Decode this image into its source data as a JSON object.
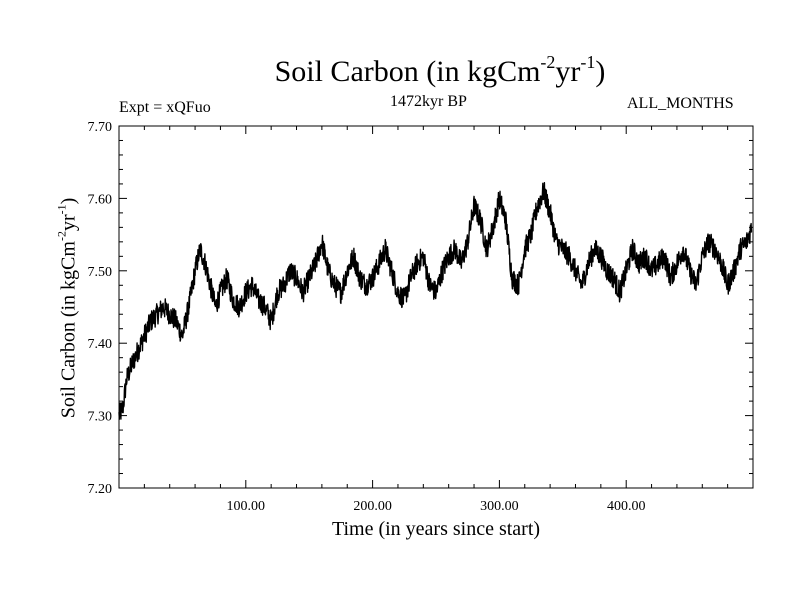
{
  "chart_data": {
    "type": "line",
    "title": "Soil Carbon (in kgCm",
    "title_sup1": "-2",
    "title_mid": "yr",
    "title_sup2": "-1",
    "title_end": ")",
    "subtitle_left": "Expt = xQFuo",
    "subtitle_center": "1472kyr BP",
    "subtitle_right": "ALL_MONTHS",
    "xlabel": "Time (in years since start)",
    "ylabel": {
      "text": "Soil Carbon (in kgCm",
      "sup1": "-2",
      "mid": "yr",
      "sup2": "-1",
      "end": ")"
    },
    "xlim": [
      0,
      500
    ],
    "ylim": [
      7.2,
      7.7
    ],
    "x_ticks": [
      100,
      200,
      300,
      400
    ],
    "x_tick_labels": [
      "100.00",
      "200.00",
      "300.00",
      "400.00"
    ],
    "y_ticks": [
      7.2,
      7.3,
      7.4,
      7.5,
      7.6,
      7.7
    ],
    "y_tick_labels": [
      "7.20",
      "7.30",
      "7.40",
      "7.50",
      "7.60",
      "7.70"
    ],
    "series": [
      {
        "name": "Soil Carbon",
        "color": "#000000",
        "x": [
          0,
          3,
          6,
          10,
          15,
          20,
          25,
          30,
          35,
          40,
          45,
          50,
          55,
          60,
          64,
          68,
          72,
          76,
          80,
          85,
          90,
          95,
          100,
          105,
          110,
          115,
          120,
          125,
          130,
          135,
          140,
          145,
          150,
          155,
          160,
          165,
          170,
          175,
          180,
          185,
          190,
          195,
          200,
          205,
          210,
          215,
          220,
          225,
          230,
          235,
          240,
          245,
          250,
          255,
          260,
          265,
          270,
          275,
          280,
          285,
          290,
          295,
          300,
          305,
          310,
          315,
          320,
          325,
          330,
          335,
          340,
          345,
          350,
          355,
          360,
          365,
          370,
          375,
          380,
          385,
          390,
          395,
          400,
          405,
          410,
          415,
          420,
          425,
          430,
          435,
          440,
          445,
          450,
          455,
          460,
          465,
          470,
          475,
          480,
          485,
          490,
          495,
          499
        ],
        "values": [
          7.3,
          7.31,
          7.35,
          7.37,
          7.39,
          7.41,
          7.43,
          7.44,
          7.45,
          7.44,
          7.43,
          7.41,
          7.45,
          7.5,
          7.53,
          7.51,
          7.48,
          7.45,
          7.47,
          7.49,
          7.46,
          7.45,
          7.47,
          7.48,
          7.46,
          7.45,
          7.43,
          7.47,
          7.48,
          7.5,
          7.49,
          7.47,
          7.49,
          7.51,
          7.54,
          7.5,
          7.48,
          7.47,
          7.5,
          7.52,
          7.49,
          7.48,
          7.49,
          7.51,
          7.53,
          7.5,
          7.47,
          7.46,
          7.49,
          7.51,
          7.52,
          7.48,
          7.47,
          7.5,
          7.52,
          7.53,
          7.51,
          7.54,
          7.59,
          7.57,
          7.53,
          7.56,
          7.6,
          7.57,
          7.49,
          7.48,
          7.53,
          7.55,
          7.59,
          7.61,
          7.58,
          7.54,
          7.53,
          7.52,
          7.5,
          7.48,
          7.51,
          7.53,
          7.52,
          7.5,
          7.49,
          7.47,
          7.5,
          7.53,
          7.51,
          7.52,
          7.5,
          7.51,
          7.52,
          7.49,
          7.51,
          7.53,
          7.5,
          7.48,
          7.52,
          7.54,
          7.53,
          7.51,
          7.48,
          7.5,
          7.53,
          7.54,
          7.56
        ],
        "noise_amplitude": 0.015
      }
    ]
  }
}
